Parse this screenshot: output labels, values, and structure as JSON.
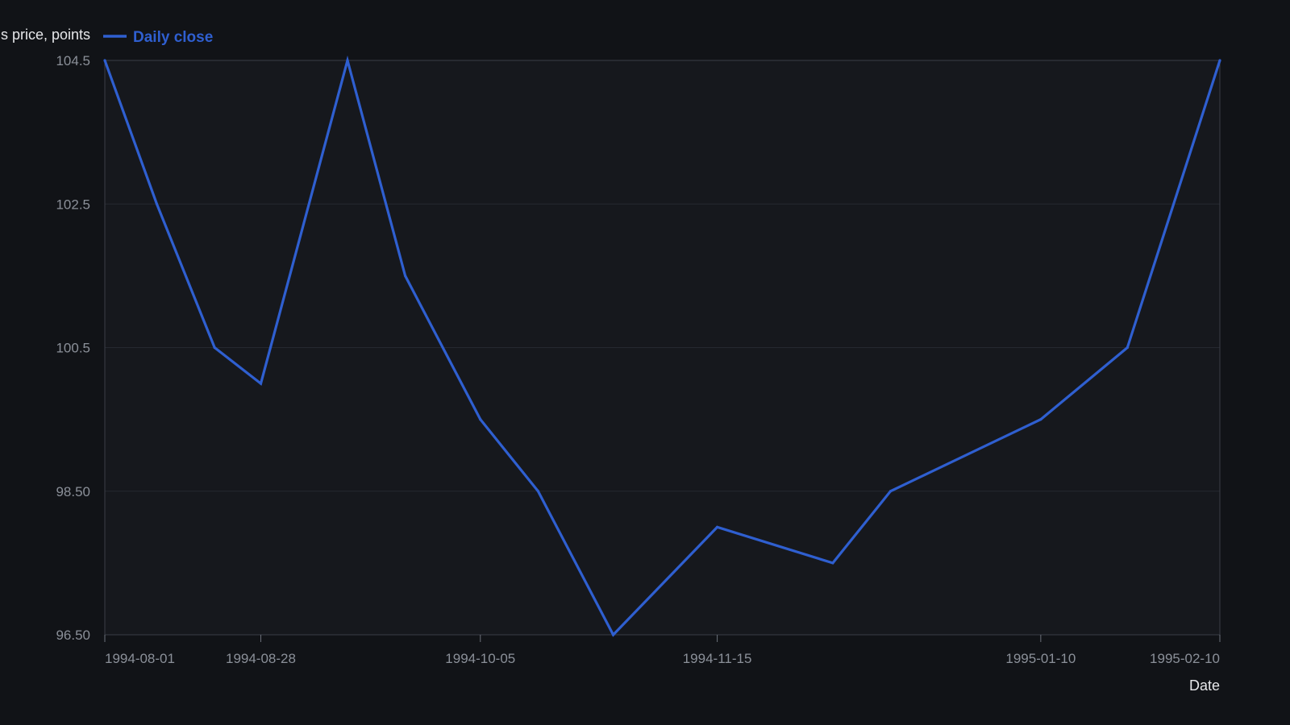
{
  "chart_data": {
    "type": "line",
    "title": "",
    "xlabel": "Date",
    "ylabel": "s price, points",
    "x_type": "date",
    "xlim": [
      "1994-08-01",
      "1995-02-10"
    ],
    "ylim": [
      96.5,
      104.5
    ],
    "x_ticks": [
      {
        "value": "1994-08-01",
        "label": "1994-08-01"
      },
      {
        "value": "1994-08-28",
        "label": "1994-08-28"
      },
      {
        "value": "1994-10-05",
        "label": "1994-10-05"
      },
      {
        "value": "1994-11-15",
        "label": "1994-11-15"
      },
      {
        "value": "1995-01-10",
        "label": "1995-01-10"
      },
      {
        "value": "1995-02-10",
        "label": "1995-02-10"
      }
    ],
    "y_ticks": [
      {
        "value": 104.5,
        "label": "104.5"
      },
      {
        "value": 102.5,
        "label": "102.5"
      },
      {
        "value": 100.5,
        "label": "100.5"
      },
      {
        "value": 98.5,
        "label": "98.50"
      },
      {
        "value": 96.5,
        "label": "96.50"
      }
    ],
    "grid": {
      "horizontal": true,
      "vertical": false
    },
    "legend": {
      "position": "top-left"
    },
    "series": [
      {
        "name": "Daily close",
        "color": "#2f5fd0",
        "x": [
          "1994-08-01",
          "1994-08-10",
          "1994-08-20",
          "1994-08-28",
          "1994-09-12",
          "1994-09-22",
          "1994-10-05",
          "1994-10-15",
          "1994-10-28",
          "1994-11-15",
          "1994-12-05",
          "1994-12-15",
          "1995-01-10",
          "1995-01-25",
          "1995-02-10"
        ],
        "values": [
          104.5,
          102.5,
          100.5,
          100.0,
          104.5,
          101.5,
          99.5,
          98.5,
          96.5,
          98.0,
          97.5,
          98.5,
          99.5,
          100.5,
          104.5
        ]
      }
    ]
  }
}
